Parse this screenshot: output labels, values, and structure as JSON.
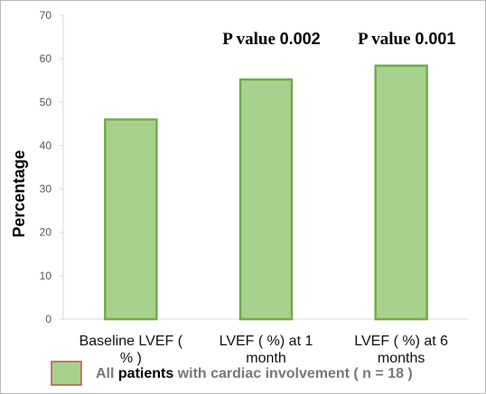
{
  "chart_data": {
    "type": "bar",
    "categories": [
      [
        "Baseline  LVEF (",
        "% )"
      ],
      [
        "LVEF ( %) at 1",
        "month"
      ],
      [
        "LVEF ( %) at 6",
        "months"
      ]
    ],
    "series": [
      {
        "name": "All patients with cardiac involvement ( n = 18 )",
        "values": [
          46,
          55.2,
          58.4
        ]
      }
    ],
    "ylabel": "Percentage",
    "xlabel": "",
    "ylim": [
      0,
      70
    ],
    "yticks": [
      0,
      10,
      20,
      30,
      40,
      50,
      60,
      70
    ],
    "grid": false,
    "legend_position": "bottom",
    "annotations": [
      {
        "category_index": 1,
        "prefix": "P value",
        "value": "0.002"
      },
      {
        "category_index": 2,
        "prefix": "P value",
        "value": "0.001"
      }
    ],
    "colors": {
      "bar_fill": "#a9d18e",
      "bar_stroke": "#70ad47",
      "legend_border": "#c0504d",
      "axis": "#d9d9d9"
    }
  },
  "legend": {
    "part1": "All ",
    "part2": "patients",
    "part3": " with cardiac involvement  ( n = 18 )"
  }
}
